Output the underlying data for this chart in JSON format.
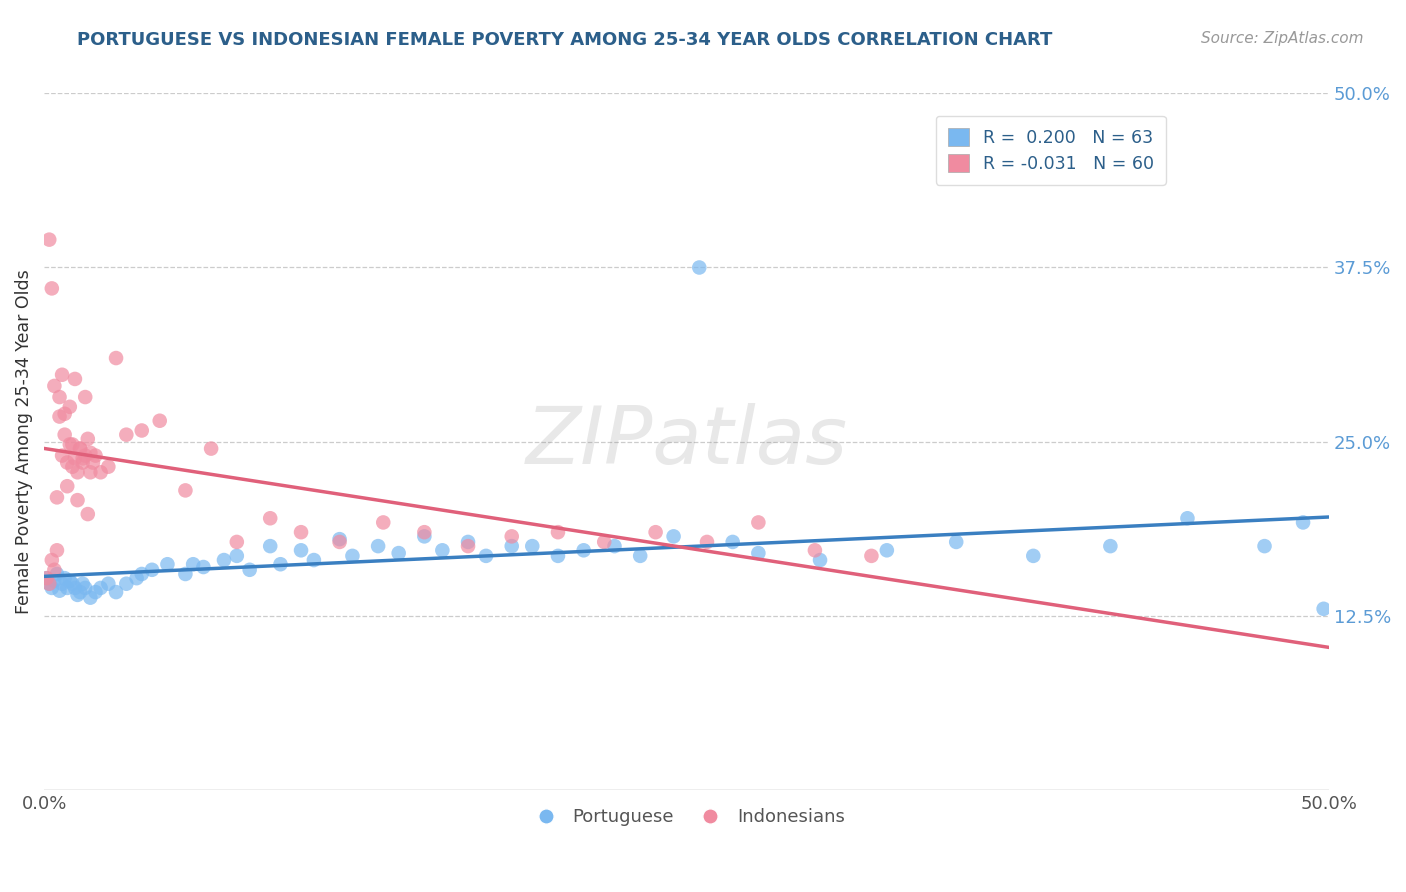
{
  "title": "PORTUGUESE VS INDONESIAN FEMALE POVERTY AMONG 25-34 YEAR OLDS CORRELATION CHART",
  "source": "Source: ZipAtlas.com",
  "ylabel": "Female Poverty Among 25-34 Year Olds",
  "xlim": [
    0,
    0.5
  ],
  "ylim": [
    0,
    0.5
  ],
  "portuguese_color": "#7ab8f0",
  "indonesian_color": "#f08ba0",
  "trend_portuguese_color": "#3a7fc1",
  "trend_indonesian_color": "#e0607a",
  "watermark": "ZIPatlas",
  "portuguese_x": [
    0.001,
    0.002,
    0.003,
    0.004,
    0.005,
    0.006,
    0.007,
    0.008,
    0.009,
    0.01,
    0.011,
    0.012,
    0.013,
    0.014,
    0.015,
    0.016,
    0.018,
    0.02,
    0.022,
    0.025,
    0.028,
    0.032,
    0.036,
    0.042,
    0.048,
    0.055,
    0.062,
    0.07,
    0.08,
    0.092,
    0.105,
    0.12,
    0.138,
    0.155,
    0.172,
    0.19,
    0.21,
    0.232,
    0.255,
    0.278,
    0.302,
    0.328,
    0.355,
    0.385,
    0.415,
    0.445,
    0.475,
    0.49,
    0.498,
    0.038,
    0.058,
    0.075,
    0.088,
    0.1,
    0.115,
    0.13,
    0.148,
    0.165,
    0.182,
    0.2,
    0.222,
    0.245,
    0.268
  ],
  "portuguese_y": [
    0.152,
    0.148,
    0.145,
    0.15,
    0.155,
    0.143,
    0.148,
    0.152,
    0.145,
    0.15,
    0.148,
    0.145,
    0.14,
    0.142,
    0.148,
    0.145,
    0.138,
    0.142,
    0.145,
    0.148,
    0.142,
    0.148,
    0.152,
    0.158,
    0.162,
    0.155,
    0.16,
    0.165,
    0.158,
    0.162,
    0.165,
    0.168,
    0.17,
    0.172,
    0.168,
    0.175,
    0.172,
    0.168,
    0.375,
    0.17,
    0.165,
    0.172,
    0.178,
    0.168,
    0.175,
    0.195,
    0.175,
    0.192,
    0.13,
    0.155,
    0.162,
    0.168,
    0.175,
    0.172,
    0.18,
    0.175,
    0.182,
    0.178,
    0.175,
    0.168,
    0.175,
    0.182,
    0.178
  ],
  "indonesian_x": [
    0.001,
    0.002,
    0.003,
    0.004,
    0.005,
    0.006,
    0.007,
    0.008,
    0.009,
    0.01,
    0.011,
    0.012,
    0.013,
    0.014,
    0.015,
    0.016,
    0.017,
    0.018,
    0.019,
    0.02,
    0.022,
    0.025,
    0.028,
    0.032,
    0.038,
    0.045,
    0.055,
    0.065,
    0.075,
    0.088,
    0.1,
    0.115,
    0.132,
    0.148,
    0.165,
    0.182,
    0.2,
    0.218,
    0.238,
    0.258,
    0.278,
    0.3,
    0.322,
    0.002,
    0.003,
    0.004,
    0.005,
    0.006,
    0.007,
    0.008,
    0.009,
    0.01,
    0.011,
    0.012,
    0.013,
    0.014,
    0.015,
    0.016,
    0.017,
    0.018
  ],
  "indonesian_y": [
    0.152,
    0.148,
    0.165,
    0.158,
    0.172,
    0.268,
    0.24,
    0.255,
    0.235,
    0.248,
    0.232,
    0.238,
    0.228,
    0.245,
    0.235,
    0.24,
    0.252,
    0.228,
    0.235,
    0.24,
    0.228,
    0.232,
    0.31,
    0.255,
    0.258,
    0.265,
    0.215,
    0.245,
    0.178,
    0.195,
    0.185,
    0.178,
    0.192,
    0.185,
    0.175,
    0.182,
    0.185,
    0.178,
    0.185,
    0.178,
    0.192,
    0.172,
    0.168,
    0.395,
    0.36,
    0.29,
    0.21,
    0.282,
    0.298,
    0.27,
    0.218,
    0.275,
    0.248,
    0.295,
    0.208,
    0.245,
    0.238,
    0.282,
    0.198,
    0.242
  ],
  "R_portuguese": 0.2,
  "N_portuguese": 63,
  "R_indonesian": -0.031,
  "N_indonesian": 60
}
